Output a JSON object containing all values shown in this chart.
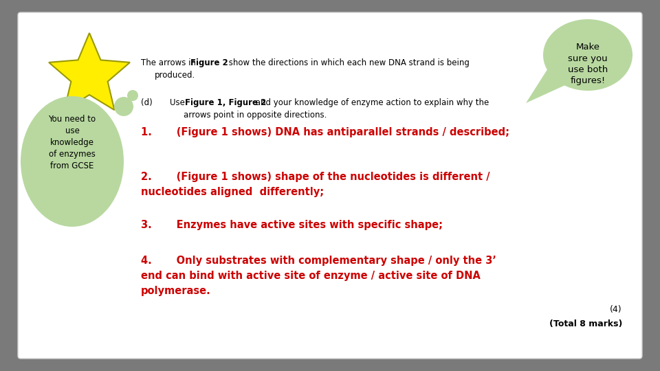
{
  "background_color": "#7a7a7a",
  "card_color": "#ffffff",
  "star_color": "#FFEE00",
  "star_outline_color": "#999900",
  "bubble_color": "#b8d8a0",
  "answer_color": "#cc0000",
  "text_color": "#000000",
  "intro_line1_normal": "The arrows in ",
  "intro_line1_bold": "Figure 2",
  "intro_line1_rest": " show the directions in which each new DNA strand is being",
  "intro_line2": "produced.",
  "question_label": "(d)",
  "question_line1_normal": "Use ",
  "question_line1_bold": "Figure 1, Figure 2",
  "question_line1_rest": " and your knowledge of enzyme action to explain why the",
  "question_line2": "arrows point in opposite directions.",
  "right_bubble_text": "Make\nsure you\nuse both\nfigures!",
  "left_bubble_text": "You need to\nuse\nknowledge\nof enzymes\nfrom GCSE",
  "answer_1": "1.       (Figure 1 shows) DNA has antiparallel strands / described;",
  "answer_2a": "2.       (Figure 1 shows) shape of the nucleotides is different /",
  "answer_2b": "nucleotides aligned  differently;",
  "answer_3": "3.       Enzymes have active sites with specific shape;",
  "answer_4a": "4.       Only substrates with complementary shape / only the 3’",
  "answer_4b": "end can bind with active site of enzyme / active site of DNA",
  "answer_4c": "polymerase.",
  "marks_text": "(4)",
  "total_text": "(Total 8 marks)"
}
